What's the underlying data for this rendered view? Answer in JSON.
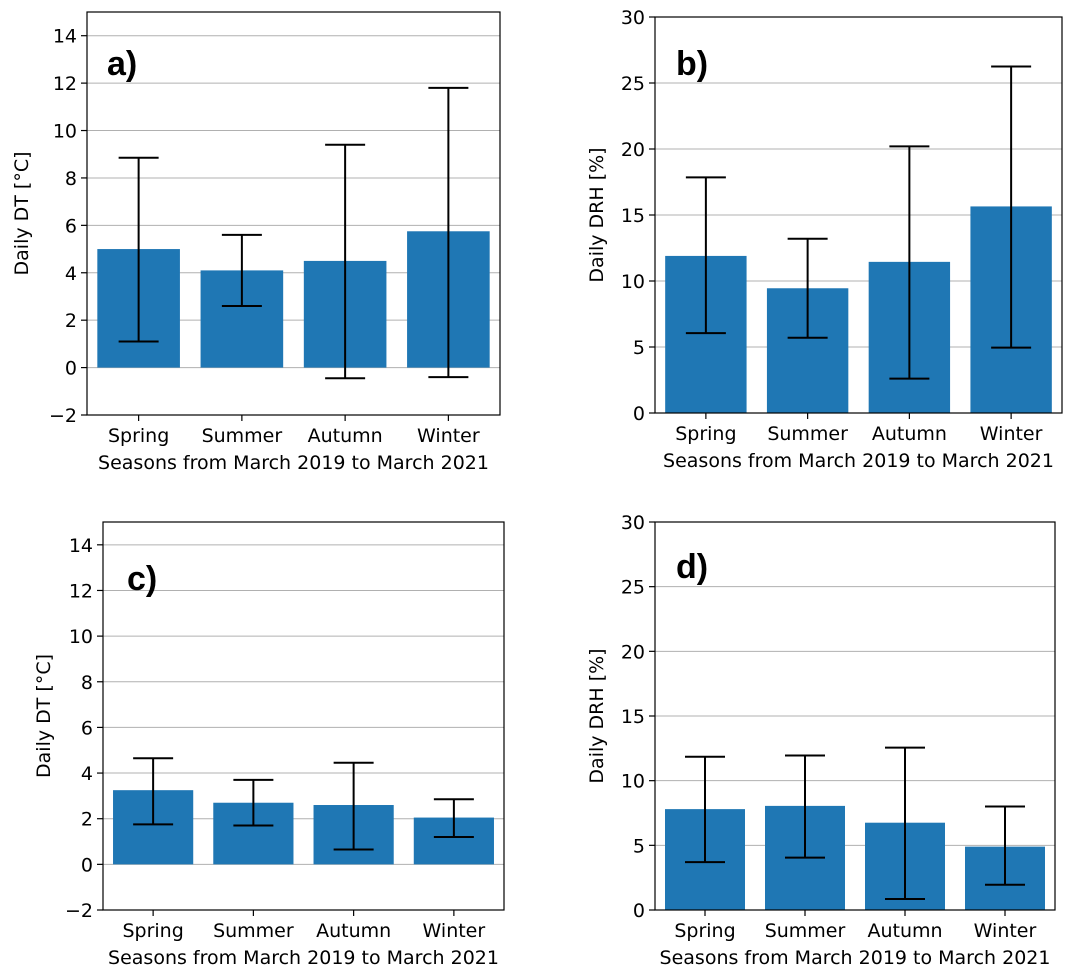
{
  "colors": {
    "bar": "#1f77b4",
    "grid": "#b0b0b0",
    "axis": "#000000"
  },
  "chart_data": [
    {
      "type": "bar",
      "panel_label": "a)",
      "categories": [
        "Spring",
        "Summer",
        "Autumn",
        "Winter"
      ],
      "values": [
        5.0,
        4.1,
        4.5,
        5.75
      ],
      "error_low": [
        1.1,
        2.6,
        -0.45,
        -0.4
      ],
      "error_high": [
        8.85,
        5.6,
        9.4,
        11.8
      ],
      "xlabel": "Seasons from March 2019 to March 2021",
      "ylabel": "Daily DT [°C]",
      "ylim": [
        -2,
        15
      ],
      "yticks": [
        -2,
        0,
        2,
        4,
        6,
        8,
        10,
        12,
        14
      ],
      "ytick_labels": [
        "−2",
        "0",
        "2",
        "4",
        "6",
        "8",
        "10",
        "12",
        "14"
      ],
      "grid": true
    },
    {
      "type": "bar",
      "panel_label": "b)",
      "categories": [
        "Spring",
        "Summer",
        "Autumn",
        "Winter"
      ],
      "values": [
        11.9,
        9.45,
        11.45,
        15.65
      ],
      "error_low": [
        6.05,
        5.7,
        2.6,
        4.95
      ],
      "error_high": [
        17.85,
        13.2,
        20.2,
        26.25
      ],
      "xlabel": "Seasons from March 2019 to March 2021",
      "ylabel": "Daily DRH [%]",
      "ylim": [
        0,
        30
      ],
      "yticks": [
        0,
        5,
        10,
        15,
        20,
        25,
        30
      ],
      "ytick_labels": [
        "0",
        "5",
        "10",
        "15",
        "20",
        "25",
        "30"
      ],
      "grid": true
    },
    {
      "type": "bar",
      "panel_label": "c)",
      "categories": [
        "Spring",
        "Summer",
        "Autumn",
        "Winter"
      ],
      "values": [
        3.25,
        2.7,
        2.6,
        2.05
      ],
      "error_low": [
        1.75,
        1.7,
        0.65,
        1.2
      ],
      "error_high": [
        4.65,
        3.7,
        4.45,
        2.85
      ],
      "xlabel": "Seasons from March 2019 to March 2021",
      "ylabel": "Daily DT [°C]",
      "ylim": [
        -2,
        15
      ],
      "yticks": [
        -2,
        0,
        2,
        4,
        6,
        8,
        10,
        12,
        14
      ],
      "ytick_labels": [
        "−2",
        "0",
        "2",
        "4",
        "6",
        "8",
        "10",
        "12",
        "14"
      ],
      "grid": true
    },
    {
      "type": "bar",
      "panel_label": "d)",
      "categories": [
        "Spring",
        "Summer",
        "Autumn",
        "Winter"
      ],
      "values": [
        7.8,
        8.05,
        6.75,
        4.9
      ],
      "error_low": [
        3.7,
        4.05,
        0.85,
        1.95
      ],
      "error_high": [
        11.85,
        11.95,
        12.55,
        8.0
      ],
      "xlabel": "Seasons from March 2019 to March 2021",
      "ylabel": "Daily DRH [%]",
      "ylim": [
        0,
        30
      ],
      "yticks": [
        0,
        5,
        10,
        15,
        20,
        25,
        30
      ],
      "ytick_labels": [
        "0",
        "5",
        "10",
        "15",
        "20",
        "25",
        "30"
      ],
      "grid": true
    }
  ]
}
